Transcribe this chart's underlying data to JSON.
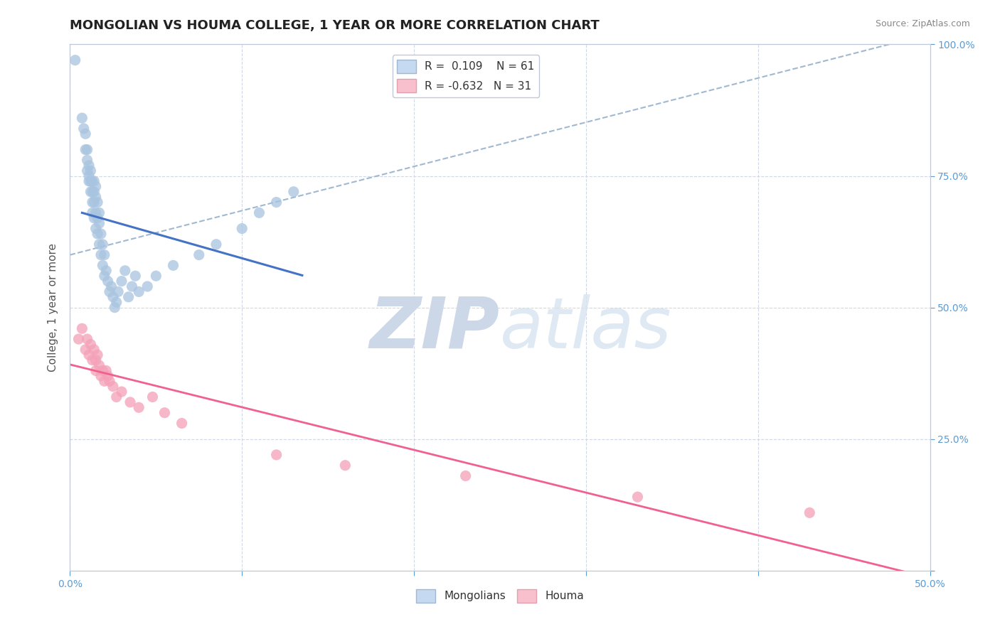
{
  "title": "MONGOLIAN VS HOUMA COLLEGE, 1 YEAR OR MORE CORRELATION CHART",
  "source_text": "Source: ZipAtlas.com",
  "ylabel": "College, 1 year or more",
  "xlim": [
    0.0,
    0.5
  ],
  "ylim": [
    0.0,
    1.0
  ],
  "xticks": [
    0.0,
    0.1,
    0.2,
    0.3,
    0.4,
    0.5
  ],
  "yticks": [
    0.0,
    0.25,
    0.5,
    0.75,
    1.0
  ],
  "xticklabels": [
    "0.0%",
    "",
    "",
    "",
    "",
    "50.0%"
  ],
  "yticklabels_right": [
    "",
    "25.0%",
    "50.0%",
    "75.0%",
    "100.0%"
  ],
  "r_mongolian": 0.109,
  "n_mongolian": 61,
  "r_houma": -0.632,
  "n_houma": 31,
  "mongolian_color": "#a8c4e0",
  "houma_color": "#f4a0b8",
  "mongolian_line_color": "#4472c4",
  "houma_line_color": "#f06090",
  "dashed_line_color": "#a0b8d0",
  "watermark_color": "#ccd8e8",
  "legend_blue_fill": "#c5d9f0",
  "legend_pink_fill": "#f8c0cc",
  "mongolian_x": [
    0.003,
    0.007,
    0.008,
    0.009,
    0.009,
    0.01,
    0.01,
    0.01,
    0.011,
    0.011,
    0.011,
    0.012,
    0.012,
    0.012,
    0.013,
    0.013,
    0.013,
    0.013,
    0.014,
    0.014,
    0.014,
    0.014,
    0.015,
    0.015,
    0.015,
    0.015,
    0.016,
    0.016,
    0.016,
    0.017,
    0.017,
    0.017,
    0.018,
    0.018,
    0.019,
    0.019,
    0.02,
    0.02,
    0.021,
    0.022,
    0.023,
    0.024,
    0.025,
    0.026,
    0.027,
    0.028,
    0.03,
    0.032,
    0.034,
    0.036,
    0.038,
    0.04,
    0.045,
    0.05,
    0.06,
    0.075,
    0.085,
    0.1,
    0.11,
    0.12,
    0.13
  ],
  "mongolian_y": [
    0.97,
    0.86,
    0.84,
    0.8,
    0.83,
    0.78,
    0.76,
    0.8,
    0.74,
    0.77,
    0.75,
    0.72,
    0.74,
    0.76,
    0.7,
    0.72,
    0.74,
    0.68,
    0.7,
    0.72,
    0.74,
    0.67,
    0.68,
    0.71,
    0.73,
    0.65,
    0.67,
    0.7,
    0.64,
    0.66,
    0.68,
    0.62,
    0.64,
    0.6,
    0.62,
    0.58,
    0.6,
    0.56,
    0.57,
    0.55,
    0.53,
    0.54,
    0.52,
    0.5,
    0.51,
    0.53,
    0.55,
    0.57,
    0.52,
    0.54,
    0.56,
    0.53,
    0.54,
    0.56,
    0.58,
    0.6,
    0.62,
    0.65,
    0.68,
    0.7,
    0.72
  ],
  "houma_x": [
    0.005,
    0.007,
    0.009,
    0.01,
    0.011,
    0.012,
    0.013,
    0.014,
    0.015,
    0.015,
    0.016,
    0.017,
    0.018,
    0.019,
    0.02,
    0.021,
    0.022,
    0.023,
    0.025,
    0.027,
    0.03,
    0.035,
    0.04,
    0.048,
    0.055,
    0.065,
    0.12,
    0.16,
    0.23,
    0.33,
    0.43
  ],
  "houma_y": [
    0.44,
    0.46,
    0.42,
    0.44,
    0.41,
    0.43,
    0.4,
    0.42,
    0.38,
    0.4,
    0.41,
    0.39,
    0.37,
    0.38,
    0.36,
    0.38,
    0.37,
    0.36,
    0.35,
    0.33,
    0.34,
    0.32,
    0.31,
    0.33,
    0.3,
    0.28,
    0.22,
    0.2,
    0.18,
    0.14,
    0.11
  ],
  "background_color": "#ffffff",
  "title_fontsize": 13,
  "axis_label_fontsize": 11,
  "tick_fontsize": 10,
  "legend_fontsize": 11,
  "source_fontsize": 9,
  "dashed_line_x": [
    0.0,
    0.5
  ],
  "dashed_line_y": [
    0.6,
    1.02
  ]
}
